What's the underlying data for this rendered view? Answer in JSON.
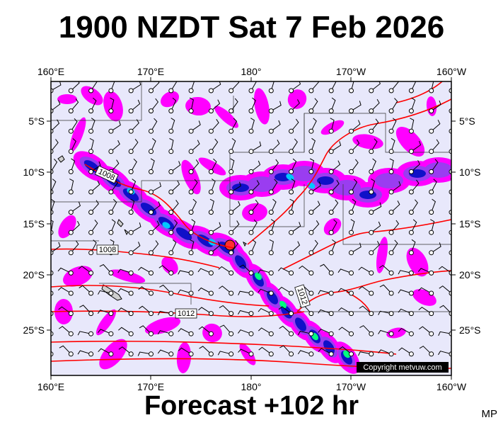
{
  "header": {
    "title": "1900 NZDT Sat 7 Feb 2026"
  },
  "footer": {
    "forecast": "Forecast +102 hr",
    "initials": "MP"
  },
  "map": {
    "lon_labels_top": [
      "160°E",
      "170°E",
      "180°",
      "170°W",
      "160°W"
    ],
    "lon_labels_bottom": [
      "160°E",
      "170°E",
      "180°",
      "170°W",
      "160°W"
    ],
    "lat_labels_left": [
      "5°S",
      "10°S",
      "15°S",
      "20°S",
      "25°S"
    ],
    "lat_labels_right": [
      "5°S",
      "10°S",
      "15°S",
      "20°S",
      "25°S"
    ],
    "isobar_labels": [
      "1008",
      "1008",
      "1012",
      "1012"
    ],
    "copyright": "Copyright metvuw.com",
    "colors": {
      "background": "#e8e8fb",
      "isobar": "#ff0000",
      "rain_light": "#ff00ff",
      "rain_mid": "#9a3df0",
      "rain_heavy": "#1010c8",
      "rain_very_heavy": "#00c8ff",
      "rain_extreme": "#00ff80"
    }
  }
}
